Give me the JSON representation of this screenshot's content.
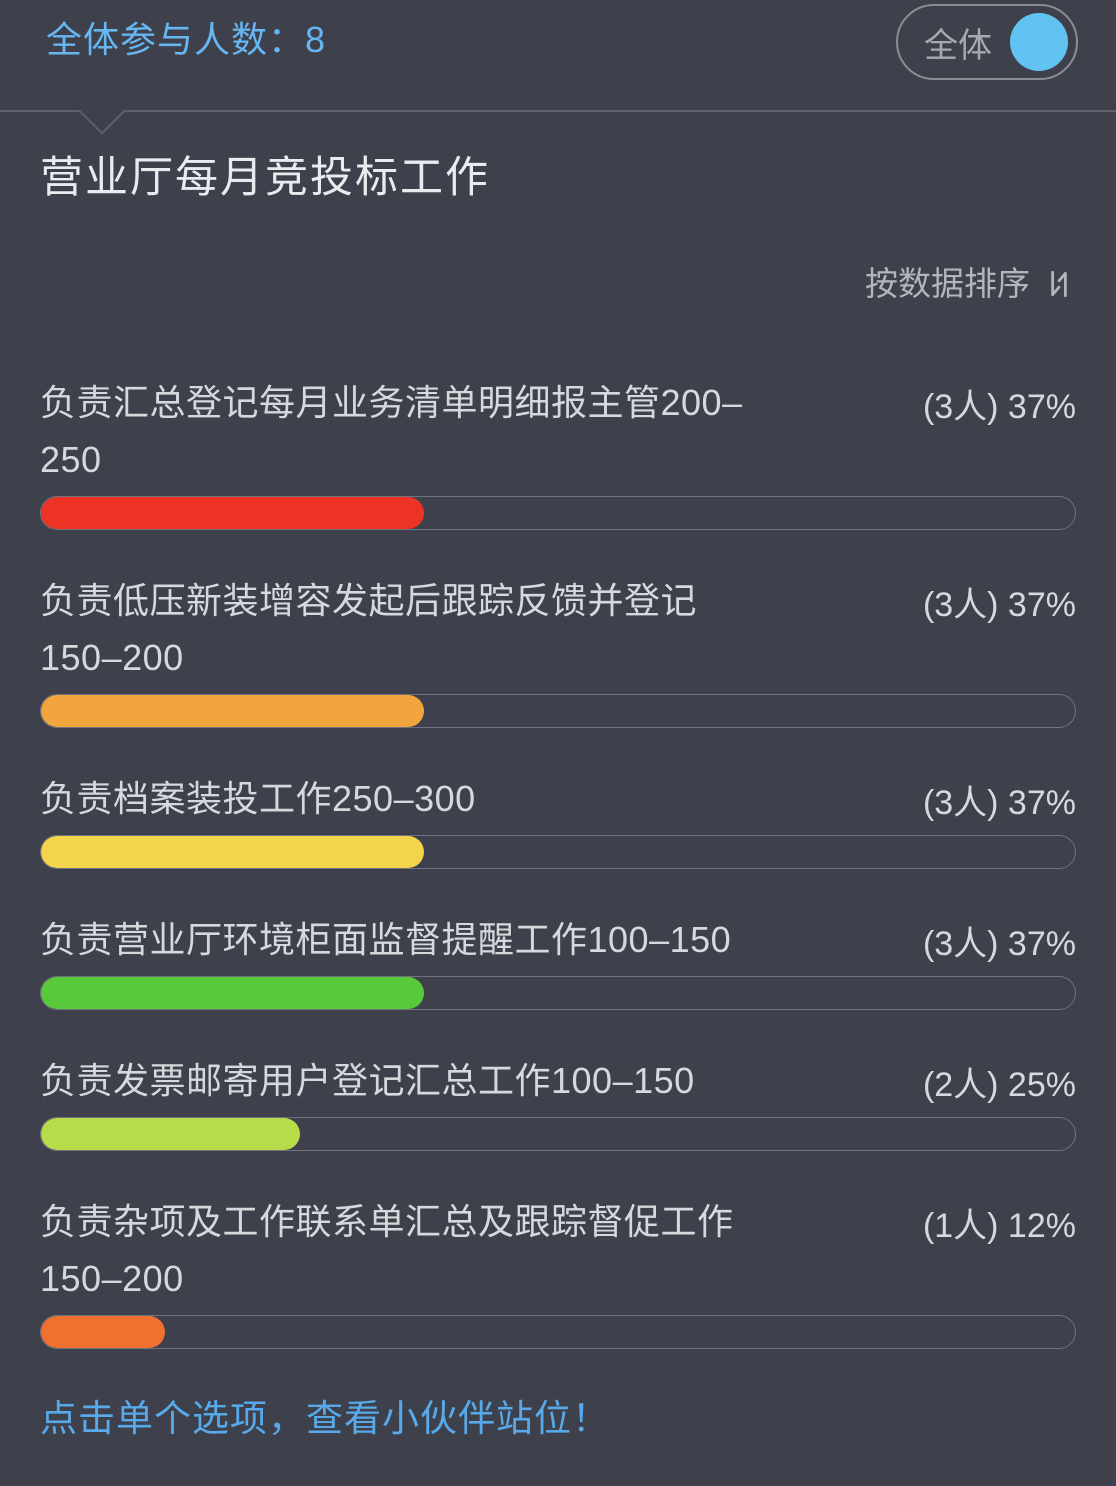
{
  "header": {
    "participants_label": "全体参与人数：8",
    "toggle_label": "全体",
    "toggle_state": "on"
  },
  "poll": {
    "title": "营业厅每月竞投标工作",
    "sort_label": "按数据排序",
    "options": [
      {
        "label": "负责汇总登记每月业务清单明细报主管200–250",
        "stat": "(3人) 37%",
        "count": "3人",
        "percent": 37,
        "color": "#ed3424"
      },
      {
        "label": "负责低压新装增容发起后跟踪反馈并登记150–200",
        "stat": "(3人) 37%",
        "count": "3人",
        "percent": 37,
        "color": "#f2a53d"
      },
      {
        "label": "负责档案装投工作250–300",
        "stat": "(3人) 37%",
        "count": "3人",
        "percent": 37,
        "color": "#f3d44b"
      },
      {
        "label": "负责营业厅环境柜面监督提醒工作100–150",
        "stat": "(3人) 37%",
        "count": "3人",
        "percent": 37,
        "color": "#59c93c"
      },
      {
        "label": "负责发票邮寄用户登记汇总工作100–150",
        "stat": "(2人) 25%",
        "count": "2人",
        "percent": 25,
        "color": "#b6dc4a"
      },
      {
        "label": "负责杂项及工作联系单汇总及跟踪督促工作150–200",
        "stat": "(1人) 12%",
        "count": "1人",
        "percent": 12,
        "color": "#ef7130"
      }
    ],
    "footer_note": "点击单个选项，查看小伙伴站位！"
  },
  "colors": {
    "background": "#3e404b",
    "accent_blue": "#62c2f1",
    "link_blue": "#57a9ea",
    "header_blue": "#67b6f1",
    "divider": "#5e606b",
    "track_border": "#70727d"
  }
}
